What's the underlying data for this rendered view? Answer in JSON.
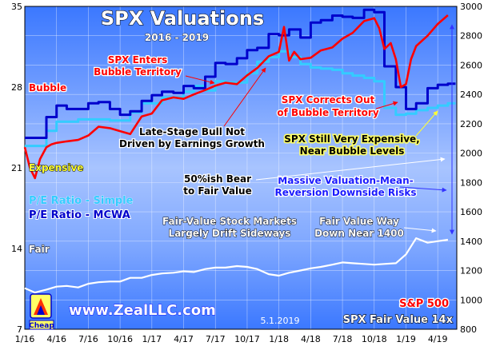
{
  "chart_data": {
    "type": "line",
    "title": "SPX Valuations",
    "subtitle": "2016 - 2019",
    "x_tick_labels": [
      "1/16",
      "4/16",
      "7/16",
      "10/16",
      "1/17",
      "4/17",
      "7/17",
      "10/17",
      "1/18",
      "4/18",
      "7/18",
      "10/18",
      "1/19",
      "4/19"
    ],
    "y_left": {
      "ticks": [
        "35",
        "28",
        "21",
        "14",
        "7"
      ],
      "range": [
        7,
        35
      ]
    },
    "y_right": {
      "ticks": [
        "3000",
        "2800",
        "2600",
        "2400",
        "2200",
        "2000",
        "1800",
        "1600",
        "1400",
        "1200",
        "1000",
        "800"
      ],
      "range": [
        800,
        3000
      ]
    },
    "zones": [
      {
        "name": "Bubble",
        "from": 28,
        "to": 35,
        "color": "#4a86ff"
      },
      {
        "name": "Expensive",
        "from": 21,
        "to": 28,
        "color": "#7da6ff"
      },
      {
        "name": "Fair",
        "from": 14,
        "to": 21,
        "color": "#b4ccff"
      },
      {
        "name": "Cheap",
        "from": 7,
        "to": 14,
        "color": "#4a86ff"
      }
    ],
    "zone_labels": {
      "bubble": "Bubble",
      "expensive": "Expensive",
      "fair": "Fair",
      "cheap": "Cheap"
    },
    "series": [
      {
        "name": "P/E Ratio - Simple",
        "axis": "left",
        "color": "#33ccff",
        "x": [
          2016.0,
          2016.08,
          2016.17,
          2016.25,
          2016.33,
          2016.42,
          2016.5,
          2016.58,
          2016.67,
          2016.75,
          2016.83,
          2016.92,
          2017.0,
          2017.08,
          2017.17,
          2017.25,
          2017.33,
          2017.42,
          2017.5,
          2017.58,
          2017.67,
          2017.75,
          2017.83,
          2017.92,
          2018.0,
          2018.08,
          2018.17,
          2018.25,
          2018.33,
          2018.42,
          2018.5,
          2018.58,
          2018.67,
          2018.75,
          2018.83,
          2018.92,
          2019.0,
          2019.08,
          2019.17,
          2019.25,
          2019.33
        ],
        "values": [
          22.9,
          22.9,
          24.2,
          25.0,
          25.0,
          25.2,
          25.2,
          25.2,
          25.1,
          25.1,
          25.8,
          26.6,
          26.6,
          27.1,
          27.1,
          27.6,
          28.1,
          27.7,
          28.5,
          28.4,
          28.4,
          29.2,
          30.2,
          30.6,
          31.1,
          30.6,
          30.0,
          29.7,
          29.6,
          29.5,
          29.2,
          29.0,
          28.8,
          28.5,
          26.2,
          25.6,
          25.7,
          26.0,
          26.2,
          26.4,
          26.6
        ]
      },
      {
        "name": "P/E Ratio - MCWA",
        "axis": "left",
        "color": "#0000cc",
        "x": [
          2016.0,
          2016.08,
          2016.17,
          2016.25,
          2016.33,
          2016.42,
          2016.5,
          2016.58,
          2016.67,
          2016.75,
          2016.83,
          2016.92,
          2017.0,
          2017.08,
          2017.17,
          2017.25,
          2017.33,
          2017.42,
          2017.5,
          2017.58,
          2017.67,
          2017.75,
          2017.83,
          2017.92,
          2018.0,
          2018.08,
          2018.17,
          2018.25,
          2018.33,
          2018.42,
          2018.5,
          2018.58,
          2018.67,
          2018.75,
          2018.83,
          2018.92,
          2019.0,
          2019.08,
          2019.17,
          2019.25,
          2019.33
        ],
        "values": [
          23.6,
          23.6,
          25.4,
          26.4,
          26.1,
          26.1,
          26.6,
          26.7,
          26.1,
          25.6,
          25.9,
          26.8,
          27.3,
          27.6,
          27.5,
          28.1,
          27.9,
          28.9,
          30.1,
          30.0,
          30.5,
          31.2,
          31.4,
          32.6,
          32.5,
          33.0,
          32.3,
          33.6,
          33.8,
          34.2,
          34.1,
          34.0,
          34.7,
          34.5,
          29.8,
          28.0,
          26.1,
          26.6,
          27.9,
          28.2,
          28.3
        ]
      },
      {
        "name": "S&P 500",
        "axis": "right",
        "color": "#ff0000",
        "x": [
          2016.0,
          2016.04,
          2016.08,
          2016.12,
          2016.17,
          2016.21,
          2016.25,
          2016.33,
          2016.42,
          2016.5,
          2016.58,
          2016.67,
          2016.75,
          2016.83,
          2016.92,
          2017.0,
          2017.08,
          2017.17,
          2017.25,
          2017.33,
          2017.42,
          2017.5,
          2017.58,
          2017.67,
          2017.75,
          2017.83,
          2017.92,
          2018.0,
          2018.04,
          2018.08,
          2018.12,
          2018.17,
          2018.25,
          2018.33,
          2018.42,
          2018.5,
          2018.58,
          2018.67,
          2018.75,
          2018.79,
          2018.83,
          2018.88,
          2018.92,
          2018.96,
          2019.0,
          2019.04,
          2019.08,
          2019.17,
          2019.25,
          2019.33
        ],
        "values": [
          2040,
          1900,
          1830,
          1960,
          2040,
          2060,
          2070,
          2080,
          2090,
          2120,
          2180,
          2170,
          2150,
          2130,
          2250,
          2270,
          2360,
          2380,
          2370,
          2400,
          2430,
          2460,
          2480,
          2470,
          2530,
          2580,
          2660,
          2690,
          2860,
          2630,
          2690,
          2640,
          2650,
          2700,
          2720,
          2780,
          2820,
          2900,
          2920,
          2850,
          2710,
          2750,
          2640,
          2450,
          2470,
          2640,
          2730,
          2800,
          2880,
          2940
        ]
      },
      {
        "name": "SPX Fair Value 14x",
        "axis": "right",
        "color": "#ffffff",
        "x": [
          2016.0,
          2016.08,
          2016.17,
          2016.25,
          2016.33,
          2016.42,
          2016.5,
          2016.58,
          2016.67,
          2016.75,
          2016.83,
          2016.92,
          2017.0,
          2017.08,
          2017.17,
          2017.25,
          2017.33,
          2017.42,
          2017.5,
          2017.58,
          2017.67,
          2017.75,
          2017.83,
          2017.92,
          2018.0,
          2018.08,
          2018.17,
          2018.25,
          2018.33,
          2018.42,
          2018.5,
          2018.58,
          2018.67,
          2018.75,
          2018.83,
          2018.92,
          2019.0,
          2019.08,
          2019.17,
          2019.25,
          2019.33
        ],
        "values": [
          1080,
          1050,
          1070,
          1090,
          1095,
          1085,
          1110,
          1120,
          1125,
          1125,
          1150,
          1150,
          1170,
          1180,
          1185,
          1195,
          1190,
          1210,
          1220,
          1220,
          1230,
          1225,
          1210,
          1175,
          1165,
          1185,
          1200,
          1215,
          1225,
          1240,
          1255,
          1250,
          1245,
          1240,
          1245,
          1250,
          1310,
          1420,
          1390,
          1400,
          1410
        ]
      }
    ],
    "legend": {
      "simple": "P/E Ratio - Simple",
      "mcwa": "P/E Ratio - MCWA",
      "spx": "S&P 500",
      "fair": "SPX Fair Value 14x"
    },
    "annotations": {
      "enters_1": "SPX Enters",
      "enters_2": "Bubble Territory",
      "late_1": "Late-Stage Bull Not",
      "late_2": "Driven by Earnings Growth",
      "corrects_1": "SPX Corrects Out",
      "corrects_2": "of Bubble Territory",
      "still_1": "SPX Still Very Expensive,",
      "still_2": "Near Bubble Levels",
      "bear_1": "50%ish Bear",
      "bear_2": "to Fair Value",
      "massive_1": "Massive Valuation-Mean-",
      "massive_2": "Reversion Downside Risks",
      "drift_1": "Fair-Value Stock Markets",
      "drift_2": "Largely Drift Sideways",
      "way_1": "Fair Value Way",
      "way_2": "Down Near 1400"
    },
    "brand": "www.ZealLLC.com",
    "date_stamp": "5.1.2019",
    "colors": {
      "plot_border": "#000000",
      "grid": "#ffffff",
      "spx_line": "#ff0000",
      "mcwa_line": "#0000cc",
      "simple_line": "#33ccff",
      "fair_line": "#ffffff",
      "arrow_red": "#ff0000",
      "arrow_blue": "#3333ff"
    },
    "grid": true
  }
}
